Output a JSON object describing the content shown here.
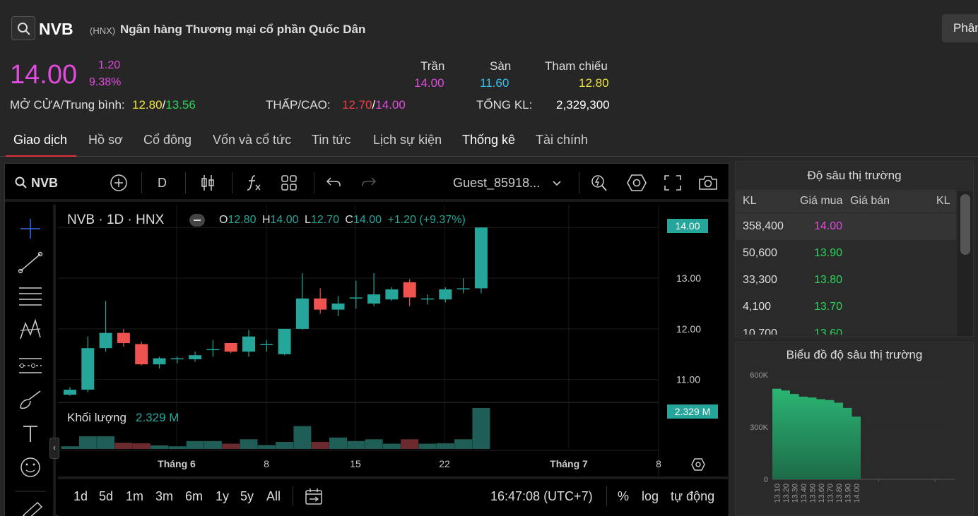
{
  "header": {
    "ticker": "NVB",
    "exchange": "(HNX)",
    "company": "Ngân hàng Thương mại cổ phần Quốc Dân",
    "top_button": "Phân"
  },
  "quote": {
    "price": "14.00",
    "change": "1.20",
    "change_pct": "9.38%",
    "ceiling_label": "Trần",
    "ceiling": "14.00",
    "floor_label": "Sàn",
    "floor": "11.60",
    "ref_label": "Tham chiếu",
    "ref": "12.80",
    "open_avg_label": "MỞ CỬA/Trung bình:",
    "open": "12.80",
    "avg": "13.56",
    "slash": "/",
    "lowhigh_label": "THẤP/CAO:",
    "low": "12.70",
    "high": "14.00",
    "volume_label": "TỔNG KL:",
    "volume": "2,329,300"
  },
  "tabs": [
    "Giao dịch",
    "Hồ sơ",
    "Cổ đông",
    "Vốn và cổ tức",
    "Tin tức",
    "Lịch sự kiện",
    "Thống kê",
    "Tài chính"
  ],
  "toolbar": {
    "symbol": "NVB",
    "interval": "D",
    "user": "Guest_85918..."
  },
  "legend": {
    "title": "NVB · 1D · HNX",
    "o_label": "O",
    "o": "12.80",
    "h_label": "H",
    "h": "14.00",
    "l_label": "L",
    "l": "12.70",
    "c_label": "C",
    "c": "14.00",
    "change": "+1.20 (+9.37%)",
    "volume_label": "Khối lượng",
    "volume": "2.329 M"
  },
  "chart_data": {
    "type": "candlestick",
    "y_ticks": [
      "14.00",
      "13.00",
      "12.00",
      "11.00"
    ],
    "last_price_label": "14.00",
    "last_volume_label": "2.329 M",
    "x_ticks": [
      "Tháng 6",
      "8",
      "15",
      "22",
      "Tháng 7",
      "8"
    ],
    "ylim": [
      10.55,
      14.45
    ],
    "candles": [
      {
        "o": 10.7,
        "h": 10.85,
        "l": 10.68,
        "c": 10.8,
        "v": 0.15,
        "up": true
      },
      {
        "o": 10.8,
        "h": 11.85,
        "l": 10.75,
        "c": 11.62,
        "v": 0.72,
        "up": true
      },
      {
        "o": 11.62,
        "h": 12.55,
        "l": 11.55,
        "c": 11.92,
        "v": 0.72,
        "up": true
      },
      {
        "o": 11.92,
        "h": 12.0,
        "l": 11.65,
        "c": 11.72,
        "v": 0.35,
        "up": false
      },
      {
        "o": 11.7,
        "h": 11.75,
        "l": 11.28,
        "c": 11.3,
        "v": 0.32,
        "up": false
      },
      {
        "o": 11.3,
        "h": 11.45,
        "l": 11.22,
        "c": 11.42,
        "v": 0.2,
        "up": true
      },
      {
        "o": 11.4,
        "h": 11.45,
        "l": 11.32,
        "c": 11.42,
        "v": 0.15,
        "up": true
      },
      {
        "o": 11.4,
        "h": 11.55,
        "l": 11.35,
        "c": 11.48,
        "v": 0.45,
        "up": true
      },
      {
        "o": 11.6,
        "h": 11.78,
        "l": 11.45,
        "c": 11.6,
        "v": 0.45,
        "up": true
      },
      {
        "o": 11.72,
        "h": 11.72,
        "l": 11.52,
        "c": 11.55,
        "v": 0.3,
        "up": false
      },
      {
        "o": 11.55,
        "h": 11.98,
        "l": 11.45,
        "c": 11.85,
        "v": 0.55,
        "up": true
      },
      {
        "o": 11.7,
        "h": 11.78,
        "l": 11.55,
        "c": 11.7,
        "v": 0.22,
        "up": true
      },
      {
        "o": 11.5,
        "h": 12.0,
        "l": 11.48,
        "c": 12.0,
        "v": 0.4,
        "up": true
      },
      {
        "o": 12.0,
        "h": 13.1,
        "l": 11.98,
        "c": 12.6,
        "v": 1.3,
        "up": true
      },
      {
        "o": 12.6,
        "h": 12.8,
        "l": 12.3,
        "c": 12.38,
        "v": 0.4,
        "up": false
      },
      {
        "o": 12.38,
        "h": 12.65,
        "l": 12.25,
        "c": 12.5,
        "v": 0.65,
        "up": true
      },
      {
        "o": 12.62,
        "h": 12.95,
        "l": 12.4,
        "c": 12.62,
        "v": 0.45,
        "up": true
      },
      {
        "o": 12.5,
        "h": 13.1,
        "l": 12.45,
        "c": 12.68,
        "v": 0.55,
        "up": true
      },
      {
        "o": 12.58,
        "h": 12.82,
        "l": 12.55,
        "c": 12.78,
        "v": 0.3,
        "up": true
      },
      {
        "o": 12.92,
        "h": 12.98,
        "l": 12.45,
        "c": 12.62,
        "v": 0.55,
        "up": false
      },
      {
        "o": 12.6,
        "h": 12.68,
        "l": 12.48,
        "c": 12.6,
        "v": 0.3,
        "up": true
      },
      {
        "o": 12.58,
        "h": 12.82,
        "l": 12.52,
        "c": 12.78,
        "v": 0.32,
        "up": true
      },
      {
        "o": 12.8,
        "h": 13.0,
        "l": 12.7,
        "c": 12.8,
        "v": 0.55,
        "up": true
      },
      {
        "o": 12.8,
        "h": 14.0,
        "l": 12.7,
        "c": 14.0,
        "v": 2.329,
        "up": true
      }
    ]
  },
  "bottom": {
    "ranges": [
      "1d",
      "5d",
      "1m",
      "3m",
      "6m",
      "1y",
      "5y",
      "All"
    ],
    "time": "16:47:08 (UTC+7)",
    "pct": "%",
    "log": "log",
    "auto": "tự động"
  },
  "orderbook": {
    "title": "Độ sâu thị trường",
    "headers": [
      "KL",
      "Giá mua",
      "Giá bán",
      "KL"
    ],
    "rows": [
      {
        "kl": "358,400",
        "price": "14.00",
        "color": "#e14bde"
      },
      {
        "kl": "50,600",
        "price": "13.90",
        "color": "#29d45b"
      },
      {
        "kl": "33,300",
        "price": "13.80",
        "color": "#29d45b"
      },
      {
        "kl": "4,100",
        "price": "13.70",
        "color": "#29d45b"
      },
      {
        "kl": "10,700",
        "price": "13.60",
        "color": "#29d45b"
      }
    ]
  },
  "depth_chart": {
    "type": "area",
    "title": "Biểu đồ độ sâu thị trường",
    "y_ticks": [
      "600K",
      "300K",
      "0"
    ],
    "y_values": [
      600000,
      300000,
      0
    ],
    "x_ticks": [
      "13.10",
      "13.20",
      "13.30",
      "13.40",
      "13.50",
      "13.60",
      "13.70",
      "13.80",
      "13.90",
      "14.00"
    ],
    "cumulative": [
      520000,
      510000,
      490000,
      475000,
      470000,
      460000,
      455000,
      440000,
      410000,
      360000
    ]
  }
}
